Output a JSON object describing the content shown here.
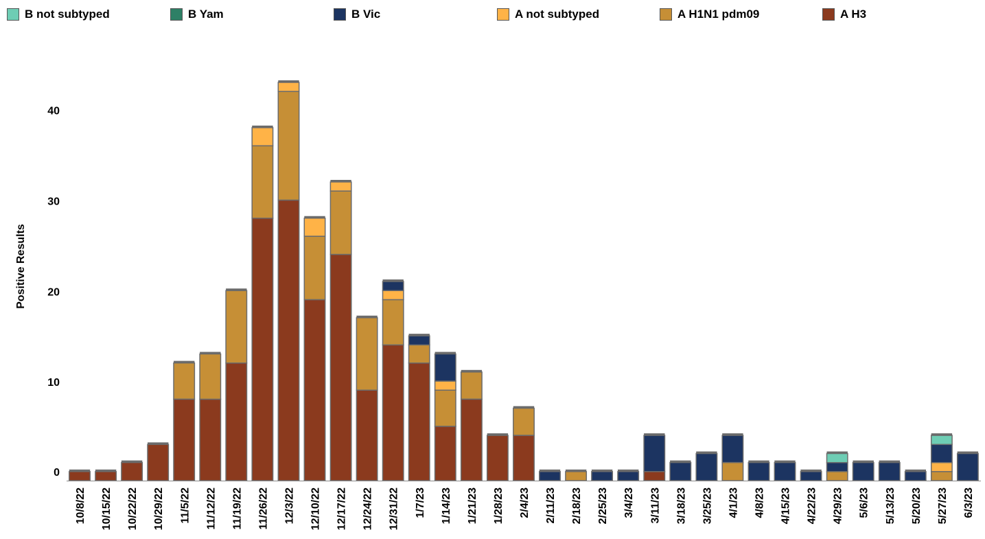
{
  "chart_data": {
    "type": "bar",
    "stacked": true,
    "ylabel": "Positive Results",
    "xlabel": "",
    "ylim": [
      0,
      45
    ],
    "yticks": [
      0,
      10,
      20,
      30,
      40
    ],
    "legend_placement": "top",
    "categories": [
      "10/8/22",
      "10/15/22",
      "10/22/22",
      "10/29/22",
      "11/5/22",
      "11/12/22",
      "11/19/22",
      "11/26/22",
      "12/3/22",
      "12/10/22",
      "12/17/22",
      "12/24/22",
      "12/31/22",
      "1/7/23",
      "1/14/23",
      "1/21/23",
      "1/28/23",
      "2/4/23",
      "2/11/23",
      "2/18/23",
      "2/25/23",
      "3/4/23",
      "3/11/23",
      "3/18/23",
      "3/25/23",
      "4/1/23",
      "4/8/23",
      "4/15/23",
      "4/22/23",
      "4/29/23",
      "5/6/23",
      "5/13/23",
      "5/20/23",
      "5/27/23",
      "6/3/23"
    ],
    "series": [
      {
        "name": "A H3",
        "color": "#8B3A1E",
        "values": [
          1,
          1,
          2,
          4,
          9,
          9,
          13,
          29,
          31,
          20,
          25,
          10,
          15,
          13,
          6,
          9,
          5,
          5,
          0,
          0,
          0,
          0,
          1,
          0,
          0,
          0,
          0,
          0,
          0,
          0,
          0,
          0,
          0,
          0,
          0
        ]
      },
      {
        "name": "A H1N1 pdm09",
        "color": "#C68F36",
        "values": [
          0,
          0,
          0,
          0,
          4,
          5,
          8,
          8,
          12,
          7,
          7,
          8,
          5,
          2,
          4,
          3,
          0,
          3,
          0,
          1,
          0,
          0,
          0,
          0,
          0,
          2,
          0,
          0,
          0,
          1,
          0,
          0,
          0,
          1,
          0
        ]
      },
      {
        "name": "A not subtyped",
        "color": "#FFB347",
        "values": [
          0,
          0,
          0,
          0,
          0,
          0,
          0,
          2,
          1,
          2,
          1,
          0,
          1,
          0,
          1,
          0,
          0,
          0,
          0,
          0,
          0,
          0,
          0,
          0,
          0,
          0,
          0,
          0,
          0,
          0,
          0,
          0,
          0,
          1,
          0
        ]
      },
      {
        "name": "B Vic",
        "color": "#1C3461",
        "values": [
          0,
          0,
          0,
          0,
          0,
          0,
          0,
          0,
          0,
          0,
          0,
          0,
          1,
          1,
          3,
          0,
          0,
          0,
          1,
          0,
          1,
          1,
          4,
          2,
          3,
          3,
          2,
          2,
          1,
          1,
          2,
          2,
          1,
          2,
          3
        ]
      },
      {
        "name": "B Yam",
        "color": "#2E8066",
        "values": [
          0,
          0,
          0,
          0,
          0,
          0,
          0,
          0,
          0,
          0,
          0,
          0,
          0,
          0,
          0,
          0,
          0,
          0,
          0,
          0,
          0,
          0,
          0,
          0,
          0,
          0,
          0,
          0,
          0,
          0,
          0,
          0,
          0,
          0,
          0
        ]
      },
      {
        "name": "B not subtyped",
        "color": "#6ECDB4",
        "values": [
          0,
          0,
          0,
          0,
          0,
          0,
          0,
          0,
          0,
          0,
          0,
          0,
          0,
          0,
          0,
          0,
          0,
          0,
          0,
          0,
          0,
          0,
          0,
          0,
          0,
          0,
          0,
          0,
          0,
          1,
          0,
          0,
          0,
          1,
          0
        ]
      }
    ]
  },
  "legend": [
    {
      "label": "B not subtyped",
      "color": "#6ECDB4"
    },
    {
      "label": "B Yam",
      "color": "#2E8066"
    },
    {
      "label": "B Vic",
      "color": "#1C3461"
    },
    {
      "label": "A not subtyped",
      "color": "#FFB347"
    },
    {
      "label": "A H1N1 pdm09",
      "color": "#C68F36"
    },
    {
      "label": "A H3",
      "color": "#8B3A1E"
    }
  ]
}
